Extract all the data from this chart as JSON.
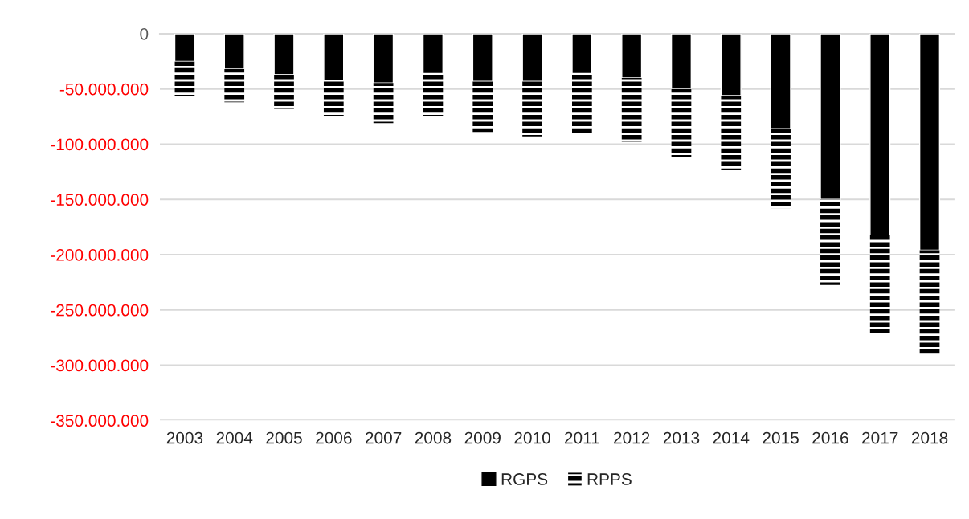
{
  "chart_data": {
    "type": "bar",
    "stacked": true,
    "categories": [
      "2003",
      "2004",
      "2005",
      "2006",
      "2007",
      "2008",
      "2009",
      "2010",
      "2011",
      "2012",
      "2013",
      "2014",
      "2015",
      "2016",
      "2017",
      "2018"
    ],
    "series": [
      {
        "name": "RGPS",
        "color": "#000000",
        "values": [
          -25000000,
          -32000000,
          -37000000,
          -42000000,
          -44500000,
          -36000000,
          -43000000,
          -43000000,
          -36000000,
          -40000000,
          -50000000,
          -56000000,
          -86000000,
          -150000000,
          -182500000,
          -196000000
        ]
      },
      {
        "name": "RPPS",
        "color": "#000000",
        "values": [
          -31000000,
          -30000000,
          -31000000,
          -33000000,
          -36500000,
          -39000000,
          -46000000,
          -50000000,
          -54000000,
          -58000000,
          -62000000,
          -67500000,
          -72000000,
          -77500000,
          -88500000,
          -94000000
        ]
      }
    ],
    "ylim": [
      -350000000,
      0
    ],
    "yticks": [
      {
        "value": 0,
        "label": "0"
      },
      {
        "value": -50000000,
        "label": "-50.000.000"
      },
      {
        "value": -100000000,
        "label": "-100.000.000"
      },
      {
        "value": -150000000,
        "label": "-150.000.000"
      },
      {
        "value": -200000000,
        "label": "-200.000.000"
      },
      {
        "value": -250000000,
        "label": "-250.000.000"
      },
      {
        "value": -300000000,
        "label": "-300.000.000"
      },
      {
        "value": -350000000,
        "label": "-350.000.000"
      }
    ],
    "grid": "y",
    "legend": "bottom"
  }
}
